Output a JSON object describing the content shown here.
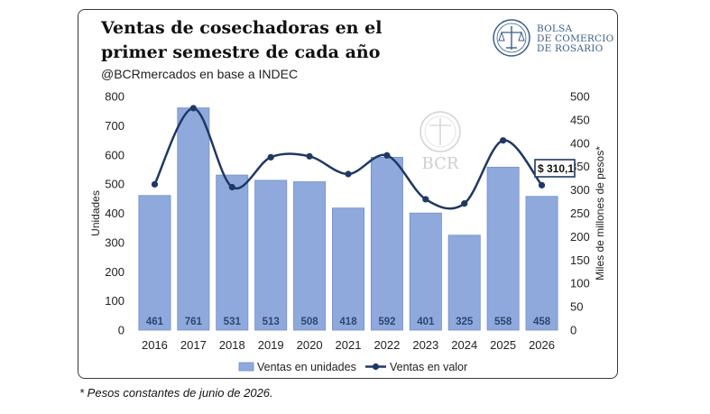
{
  "header": {
    "title": "Ventas de cosechadoras en el primer semestre de cada año",
    "subtitle": "@BCRmercados en base a INDEC"
  },
  "logo": {
    "icon": "bcr-seal-icon",
    "lines": [
      "BOLSA",
      "DE COMERCIO",
      "DE ROSARIO"
    ]
  },
  "watermark": {
    "icon": "bcr-seal-icon",
    "text": "BCR"
  },
  "footnote": "* Pesos constantes de junio de 2026.",
  "chart_data": {
    "type": "bar",
    "categories": [
      "2016",
      "2017",
      "2018",
      "2019",
      "2020",
      "2021",
      "2022",
      "2023",
      "2024",
      "2025",
      "2026"
    ],
    "series": [
      {
        "name": "Ventas en unidades",
        "type": "bar",
        "axis": "left",
        "values": [
          461,
          761,
          531,
          513,
          508,
          418,
          592,
          401,
          325,
          558,
          458
        ],
        "color": "#8fa9dc"
      },
      {
        "name": "Ventas en valor",
        "type": "line",
        "axis": "right",
        "values": [
          312,
          475,
          306,
          370,
          372,
          334,
          374,
          280,
          271,
          406,
          310.1
        ],
        "color": "#1f3864"
      }
    ],
    "ylabel": "Unidades",
    "y2label": "Miles de millones de pesos*",
    "ylim": [
      0,
      800
    ],
    "y2lim": [
      0,
      500
    ],
    "yticks": [
      0,
      100,
      200,
      300,
      400,
      500,
      600,
      700,
      800
    ],
    "y2ticks": [
      0,
      50,
      100,
      150,
      200,
      250,
      300,
      350,
      400,
      450,
      500
    ],
    "callout": "$ 310,1",
    "grid": false,
    "legend_position": "bottom"
  }
}
